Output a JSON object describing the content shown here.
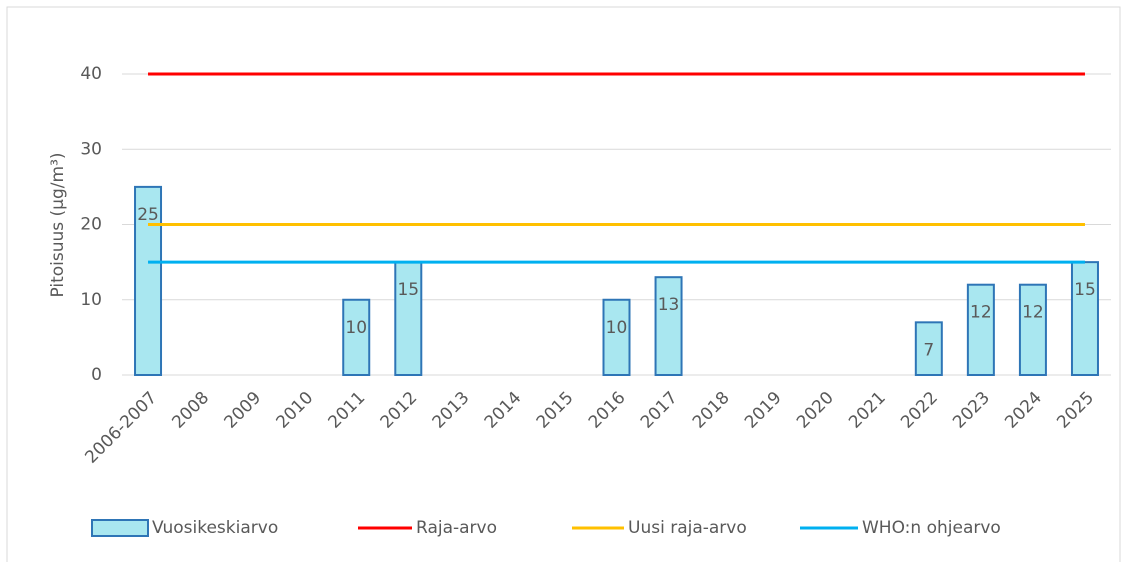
{
  "chart_data": {
    "type": "bar",
    "y_label": "Pitoisuus (µg/m³)",
    "categories": [
      "2006-2007",
      "2008",
      "2009",
      "2010",
      "2011",
      "2012",
      "2013",
      "2014",
      "2015",
      "2016",
      "2017",
      "2018",
      "2019",
      "2020",
      "2021",
      "2022",
      "2023",
      "2024",
      "2025"
    ],
    "series": [
      {
        "name": "Vuosikeskiarvo",
        "type": "bar",
        "color": "#a9e7f0",
        "edge_color": "#2e75b6",
        "values": [
          25,
          null,
          null,
          null,
          10,
          15,
          null,
          null,
          null,
          10,
          13,
          null,
          null,
          null,
          null,
          7,
          12,
          12,
          15
        ]
      },
      {
        "name": "Raja-arvo",
        "type": "line",
        "color": "#ff0000",
        "values": [
          40,
          40,
          40,
          40,
          40,
          40,
          40,
          40,
          40,
          40,
          40,
          40,
          40,
          40,
          40,
          40,
          40,
          40,
          40
        ]
      },
      {
        "name": "Uusi raja-arvo",
        "type": "line",
        "color": "#ffc000",
        "values": [
          20,
          20,
          20,
          20,
          20,
          20,
          20,
          20,
          20,
          20,
          20,
          20,
          20,
          20,
          20,
          20,
          20,
          20,
          20
        ]
      },
      {
        "name": "WHO:n ohjearvo",
        "type": "line",
        "color": "#00b0f0",
        "values": [
          15,
          15,
          15,
          15,
          15,
          15,
          15,
          15,
          15,
          15,
          15,
          15,
          15,
          15,
          15,
          15,
          15,
          15,
          15
        ]
      }
    ],
    "ylim": [
      0,
      45
    ],
    "yticks": [
      0,
      10,
      20,
      30,
      40
    ],
    "grid": true,
    "data_labels": true,
    "legend": "bottom"
  }
}
